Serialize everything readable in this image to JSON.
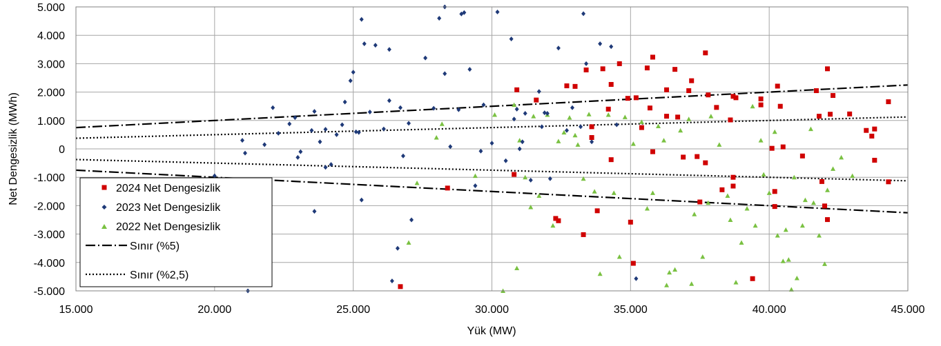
{
  "chart_data": {
    "type": "scatter",
    "title": "",
    "xlabel": "Yük (MW)",
    "ylabel": "Net Dengesizlik (MWh)",
    "xlim": [
      15000,
      45000
    ],
    "ylim": [
      -5000,
      5000
    ],
    "grid": true,
    "legend_position": "bottom-left",
    "x_ticks": [
      15000,
      20000,
      25000,
      30000,
      35000,
      40000,
      45000
    ],
    "x_tick_labels": [
      "15.000",
      "20.000",
      "25.000",
      "30.000",
      "35.000",
      "40.000",
      "45.000"
    ],
    "y_ticks": [
      5000,
      4000,
      3000,
      2000,
      1000,
      0,
      -1000,
      -2000,
      -3000,
      -4000,
      -5000
    ],
    "y_tick_labels": [
      "5.000",
      "4.000",
      "3.000",
      "2.000",
      "1.000",
      "0",
      "-1.000",
      "-2.000",
      "-3.000",
      "-4.000",
      "-5.000"
    ],
    "series": [
      {
        "name": "2024 Net Dengesizlik",
        "marker": "square",
        "color": "#d00000",
        "points": [
          [
            26700,
            -4850
          ],
          [
            28400,
            -1380
          ],
          [
            30800,
            -900
          ],
          [
            30900,
            2080
          ],
          [
            31600,
            1720
          ],
          [
            32700,
            2220
          ],
          [
            33000,
            2200
          ],
          [
            32300,
            -2450
          ],
          [
            32400,
            -2530
          ],
          [
            33300,
            -3020
          ],
          [
            33400,
            2780
          ],
          [
            33600,
            780
          ],
          [
            33600,
            400
          ],
          [
            33800,
            -2180
          ],
          [
            34000,
            2820
          ],
          [
            34200,
            1400
          ],
          [
            34300,
            -380
          ],
          [
            34300,
            2270
          ],
          [
            34600,
            3000
          ],
          [
            34900,
            1780
          ],
          [
            35000,
            -2580
          ],
          [
            35200,
            1800
          ],
          [
            35100,
            -4030
          ],
          [
            35400,
            750
          ],
          [
            35600,
            2850
          ],
          [
            35700,
            1440
          ],
          [
            35800,
            3230
          ],
          [
            35800,
            -100
          ],
          [
            36300,
            2080
          ],
          [
            36300,
            1150
          ],
          [
            36600,
            2800
          ],
          [
            36700,
            1120
          ],
          [
            36900,
            -290
          ],
          [
            37100,
            2050
          ],
          [
            37200,
            2400
          ],
          [
            37400,
            -270
          ],
          [
            37500,
            -1870
          ],
          [
            37700,
            3380
          ],
          [
            37700,
            -490
          ],
          [
            37800,
            1900
          ],
          [
            38100,
            1460
          ],
          [
            38300,
            -1440
          ],
          [
            38600,
            1020
          ],
          [
            38700,
            -1000
          ],
          [
            38700,
            1850
          ],
          [
            38700,
            -1310
          ],
          [
            38800,
            1800
          ],
          [
            39400,
            -4570
          ],
          [
            39700,
            1550
          ],
          [
            39700,
            1760
          ],
          [
            40100,
            20
          ],
          [
            40200,
            -1500
          ],
          [
            40200,
            -2030
          ],
          [
            40300,
            2210
          ],
          [
            40400,
            1500
          ],
          [
            40500,
            70
          ],
          [
            41200,
            -250
          ],
          [
            41700,
            2050
          ],
          [
            41800,
            1150
          ],
          [
            41900,
            -1150
          ],
          [
            42000,
            -2010
          ],
          [
            42100,
            -2490
          ],
          [
            42100,
            2820
          ],
          [
            42200,
            1220
          ],
          [
            42300,
            1880
          ],
          [
            42900,
            1230
          ],
          [
            43500,
            650
          ],
          [
            43700,
            450
          ],
          [
            43800,
            700
          ],
          [
            43800,
            -400
          ],
          [
            44300,
            1660
          ],
          [
            44300,
            -1160
          ]
        ]
      },
      {
        "name": "2023 Net Dengesizlik",
        "marker": "diamond",
        "color": "#1f3a78",
        "points": [
          [
            20000,
            -950
          ],
          [
            21000,
            300
          ],
          [
            21100,
            -150
          ],
          [
            21200,
            -5000
          ],
          [
            21800,
            150
          ],
          [
            22100,
            1450
          ],
          [
            22300,
            550
          ],
          [
            22700,
            880
          ],
          [
            22900,
            1100
          ],
          [
            23000,
            -300
          ],
          [
            23100,
            -100
          ],
          [
            23500,
            650
          ],
          [
            23600,
            1320
          ],
          [
            23600,
            -2200
          ],
          [
            23800,
            250
          ],
          [
            24000,
            -650
          ],
          [
            24000,
            690
          ],
          [
            24200,
            -550
          ],
          [
            24400,
            500
          ],
          [
            24600,
            850
          ],
          [
            24700,
            1650
          ],
          [
            24900,
            2400
          ],
          [
            25000,
            2700
          ],
          [
            25100,
            600
          ],
          [
            25200,
            580
          ],
          [
            25300,
            -1800
          ],
          [
            25300,
            4560
          ],
          [
            25400,
            3700
          ],
          [
            25600,
            1300
          ],
          [
            25800,
            3650
          ],
          [
            26100,
            700
          ],
          [
            26300,
            3500
          ],
          [
            26300,
            1700
          ],
          [
            26400,
            -4650
          ],
          [
            26600,
            -3500
          ],
          [
            26700,
            1450
          ],
          [
            26800,
            -250
          ],
          [
            27000,
            900
          ],
          [
            27100,
            -2500
          ],
          [
            27600,
            3200
          ],
          [
            27900,
            1430
          ],
          [
            28100,
            4600
          ],
          [
            28300,
            5000
          ],
          [
            28300,
            2650
          ],
          [
            28500,
            80
          ],
          [
            28800,
            1380
          ],
          [
            28900,
            4750
          ],
          [
            29000,
            4800
          ],
          [
            29200,
            2800
          ],
          [
            29400,
            -1300
          ],
          [
            29600,
            -80
          ],
          [
            29700,
            1550
          ],
          [
            30000,
            200
          ],
          [
            30200,
            4820
          ],
          [
            30500,
            -420
          ],
          [
            30700,
            3870
          ],
          [
            30800,
            1050
          ],
          [
            30900,
            1400
          ],
          [
            31000,
            0
          ],
          [
            31100,
            250
          ],
          [
            31200,
            1250
          ],
          [
            31400,
            -1100
          ],
          [
            31700,
            2020
          ],
          [
            31800,
            780
          ],
          [
            31900,
            1270
          ],
          [
            32000,
            1250
          ],
          [
            32100,
            -1050
          ],
          [
            32400,
            3550
          ],
          [
            32700,
            650
          ],
          [
            32900,
            1450
          ],
          [
            33200,
            780
          ],
          [
            33300,
            4760
          ],
          [
            33400,
            3000
          ],
          [
            33600,
            250
          ],
          [
            33900,
            3700
          ],
          [
            34300,
            3600
          ],
          [
            34500,
            850
          ],
          [
            35200,
            -4570
          ]
        ]
      },
      {
        "name": "2022 Net Dengesizlik",
        "marker": "triangle",
        "color": "#7ac142",
        "points": [
          [
            27000,
            -3300
          ],
          [
            27300,
            -1200
          ],
          [
            28000,
            400
          ],
          [
            28200,
            880
          ],
          [
            29400,
            -950
          ],
          [
            30100,
            1200
          ],
          [
            30400,
            -5000
          ],
          [
            30800,
            1550
          ],
          [
            30900,
            -4200
          ],
          [
            31000,
            300
          ],
          [
            31200,
            -1000
          ],
          [
            31400,
            -2050
          ],
          [
            31500,
            1150
          ],
          [
            31700,
            -1650
          ],
          [
            32000,
            1200
          ],
          [
            32200,
            -2700
          ],
          [
            32400,
            270
          ],
          [
            32600,
            580
          ],
          [
            32800,
            1100
          ],
          [
            33000,
            480
          ],
          [
            33100,
            150
          ],
          [
            33300,
            -1050
          ],
          [
            33500,
            1220
          ],
          [
            33700,
            -1500
          ],
          [
            33900,
            -4400
          ],
          [
            34200,
            1200
          ],
          [
            34400,
            -1550
          ],
          [
            34600,
            -3800
          ],
          [
            34800,
            1120
          ],
          [
            35100,
            180
          ],
          [
            35400,
            950
          ],
          [
            35600,
            -2100
          ],
          [
            35800,
            -1550
          ],
          [
            36000,
            800
          ],
          [
            36200,
            300
          ],
          [
            36300,
            -4800
          ],
          [
            36400,
            -4350
          ],
          [
            36600,
            -4250
          ],
          [
            36800,
            650
          ],
          [
            37100,
            1050
          ],
          [
            37200,
            -4750
          ],
          [
            37300,
            -2300
          ],
          [
            37600,
            -3800
          ],
          [
            37800,
            -1900
          ],
          [
            37900,
            1150
          ],
          [
            38200,
            150
          ],
          [
            38500,
            -1650
          ],
          [
            38600,
            -2500
          ],
          [
            38800,
            -4700
          ],
          [
            39000,
            -3300
          ],
          [
            39200,
            -2100
          ],
          [
            39400,
            1500
          ],
          [
            39500,
            -2700
          ],
          [
            39700,
            300
          ],
          [
            39800,
            -900
          ],
          [
            40000,
            -1550
          ],
          [
            40200,
            600
          ],
          [
            40300,
            -3050
          ],
          [
            40500,
            -3950
          ],
          [
            40600,
            -2850
          ],
          [
            40700,
            -3900
          ],
          [
            40800,
            -4950
          ],
          [
            40900,
            -1000
          ],
          [
            41000,
            -4550
          ],
          [
            41200,
            -2700
          ],
          [
            41300,
            -1800
          ],
          [
            41500,
            700
          ],
          [
            41600,
            -1900
          ],
          [
            41800,
            -3050
          ],
          [
            42000,
            -4050
          ],
          [
            42100,
            -1450
          ],
          [
            42300,
            -700
          ],
          [
            42600,
            -300
          ],
          [
            43000,
            -950
          ]
        ]
      }
    ],
    "lines": [
      {
        "name": "Sınır (%5)",
        "style": "dash-dot",
        "color": "#000000",
        "segments": [
          [
            [
              15000,
              750
            ],
            [
              45000,
              2250
            ]
          ],
          [
            [
              15000,
              -750
            ],
            [
              45000,
              -2250
            ]
          ]
        ]
      },
      {
        "name": "Sınır (%2,5)",
        "style": "dotted",
        "color": "#000000",
        "segments": [
          [
            [
              15000,
              375
            ],
            [
              45000,
              1125
            ]
          ],
          [
            [
              15000,
              -375
            ],
            [
              45000,
              -1125
            ]
          ]
        ]
      }
    ]
  }
}
